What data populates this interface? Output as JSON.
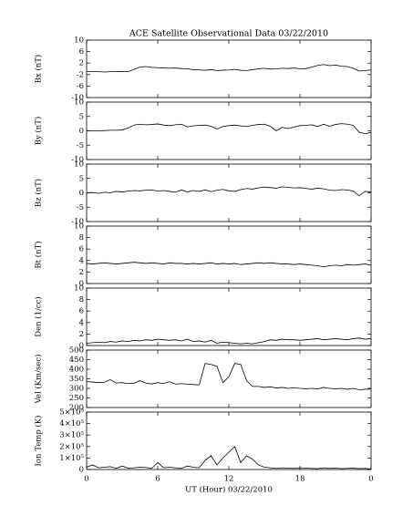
{
  "chart_data": [
    {
      "type": "line",
      "title": "ACE Satellite Observational Data   03/22/2010",
      "y_label": "Bx (nT)",
      "x": [
        0,
        0.5,
        1,
        1.5,
        2,
        2.5,
        3,
        3.5,
        4,
        4.5,
        5,
        5.5,
        6,
        6.5,
        7,
        7.5,
        8,
        8.5,
        9,
        9.5,
        10,
        10.5,
        11,
        11.5,
        12,
        12.5,
        13,
        13.5,
        14,
        14.5,
        15,
        15.5,
        16,
        16.5,
        17,
        17.5,
        18,
        18.5,
        19,
        19.5,
        20,
        20.5,
        21,
        21.5,
        22,
        22.5,
        23,
        23.5,
        24
      ],
      "series": [
        {
          "name": "Bx",
          "color": "#000000",
          "values": [
            -1,
            -1,
            -1,
            -1.1,
            -1,
            -1,
            -0.9,
            -1,
            -0.2,
            0.6,
            0.8,
            0.5,
            0.4,
            0.3,
            0.2,
            0.3,
            0.1,
            0,
            -0.3,
            -0.4,
            -0.5,
            -0.3,
            -0.6,
            -0.5,
            -0.4,
            -0.2,
            -0.5,
            -0.6,
            -0.3,
            0,
            0.2,
            -0.1,
            0,
            0.2,
            0.1,
            0.3,
            0,
            0.1,
            0.6,
            1.2,
            1.5,
            1.1,
            1.3,
            0.9,
            0.8,
            0.2,
            -0.8,
            -0.6,
            -0.4
          ]
        }
      ],
      "xlim": [
        0,
        24
      ],
      "ylim": [
        -10,
        10
      ],
      "yticks": [
        10,
        6,
        2,
        -2,
        -6,
        -10
      ]
    },
    {
      "type": "line",
      "y_label": "By (nT)",
      "x": [
        0,
        0.5,
        1,
        1.5,
        2,
        2.5,
        3,
        3.5,
        4,
        4.5,
        5,
        5.5,
        6,
        6.5,
        7,
        7.5,
        8,
        8.5,
        9,
        9.5,
        10,
        10.5,
        11,
        11.5,
        12,
        12.5,
        13,
        13.5,
        14,
        14.5,
        15,
        15.5,
        16,
        16.5,
        17,
        17.5,
        18,
        18.5,
        19,
        19.5,
        20,
        20.5,
        21,
        21.5,
        22,
        22.5,
        23,
        23.5,
        24
      ],
      "series": [
        {
          "name": "By",
          "color": "#000000",
          "values": [
            0,
            0,
            0,
            0.1,
            0.2,
            0.2,
            0.3,
            1,
            2,
            2.3,
            2.1,
            2.2,
            2.4,
            2,
            1.8,
            2.1,
            2.3,
            1.4,
            1.7,
            1.9,
            2,
            1.6,
            0.6,
            1.5,
            1.8,
            2,
            1.7,
            1.5,
            1.9,
            2.2,
            2.3,
            1.6,
            0,
            1.2,
            0.8,
            1.3,
            1.8,
            1.9,
            2.1,
            1.5,
            2.3,
            1.6,
            2.2,
            2.5,
            2.3,
            1.9,
            -0.5,
            -1,
            -0.6
          ]
        }
      ],
      "xlim": [
        0,
        24
      ],
      "ylim": [
        -10,
        10
      ],
      "yticks": [
        10,
        5,
        0,
        -5,
        -10
      ]
    },
    {
      "type": "line",
      "y_label": "Bz (nT)",
      "x": [
        0,
        0.5,
        1,
        1.5,
        2,
        2.5,
        3,
        3.5,
        4,
        4.5,
        5,
        5.5,
        6,
        6.5,
        7,
        7.5,
        8,
        8.5,
        9,
        9.5,
        10,
        10.5,
        11,
        11.5,
        12,
        12.5,
        13,
        13.5,
        14,
        14.5,
        15,
        15.5,
        16,
        16.5,
        17,
        17.5,
        18,
        18.5,
        19,
        19.5,
        20,
        20.5,
        21,
        21.5,
        22,
        22.5,
        23,
        23.5,
        24
      ],
      "series": [
        {
          "name": "Bz",
          "color": "#000000",
          "values": [
            0,
            0.1,
            -0.2,
            0.2,
            0,
            0.5,
            0.3,
            0.6,
            0.8,
            0.7,
            0.9,
            1,
            0.6,
            0.8,
            0.5,
            0.2,
            1,
            0.3,
            0.8,
            0.5,
            1,
            0.4,
            0.9,
            1.2,
            0.7,
            0.5,
            1.1,
            1.5,
            1.3,
            1.7,
            2,
            1.8,
            1.6,
            2.1,
            1.9,
            1.7,
            1.8,
            1.5,
            1.3,
            1.6,
            1.4,
            0.9,
            0.8,
            1.1,
            1,
            0.6,
            -1,
            0.5,
            0.3
          ]
        }
      ],
      "xlim": [
        0,
        24
      ],
      "ylim": [
        -10,
        10
      ],
      "yticks": [
        10,
        5,
        0,
        -5,
        -10
      ]
    },
    {
      "type": "line",
      "y_label": "Bt (nT)",
      "x": [
        0,
        0.5,
        1,
        1.5,
        2,
        2.5,
        3,
        3.5,
        4,
        4.5,
        5,
        5.5,
        6,
        6.5,
        7,
        7.5,
        8,
        8.5,
        9,
        9.5,
        10,
        10.5,
        11,
        11.5,
        12,
        12.5,
        13,
        13.5,
        14,
        14.5,
        15,
        15.5,
        16,
        16.5,
        17,
        17.5,
        18,
        18.5,
        19,
        19.5,
        20,
        20.5,
        21,
        21.5,
        22,
        22.5,
        23,
        23.5,
        24
      ],
      "series": [
        {
          "name": "Bt",
          "color": "#000000",
          "values": [
            3.5,
            3.4,
            3.5,
            3.6,
            3.5,
            3.4,
            3.5,
            3.6,
            3.7,
            3.6,
            3.5,
            3.6,
            3.5,
            3.4,
            3.6,
            3.5,
            3.5,
            3.4,
            3.5,
            3.4,
            3.5,
            3.6,
            3.4,
            3.5,
            3.4,
            3.5,
            3.3,
            3.4,
            3.5,
            3.6,
            3.5,
            3.6,
            3.5,
            3.4,
            3.4,
            3.3,
            3.4,
            3.3,
            3.2,
            3.1,
            2.9,
            3.1,
            3.2,
            3.1,
            3.3,
            3.2,
            3.3,
            3.4,
            3.2
          ]
        }
      ],
      "xlim": [
        0,
        24
      ],
      "ylim": [
        0,
        10
      ],
      "yticks": [
        10,
        8,
        6,
        4,
        2,
        0
      ]
    },
    {
      "type": "line",
      "y_label": "Den (1/cc)",
      "x": [
        0,
        0.5,
        1,
        1.5,
        2,
        2.5,
        3,
        3.5,
        4,
        4.5,
        5,
        5.5,
        6,
        6.5,
        7,
        7.5,
        8,
        8.5,
        9,
        9.5,
        10,
        10.5,
        11,
        11.5,
        12,
        12.5,
        13,
        13.5,
        14,
        14.5,
        15,
        15.5,
        16,
        16.5,
        17,
        17.5,
        18,
        18.5,
        19,
        19.5,
        20,
        20.5,
        21,
        21.5,
        22,
        22.5,
        23,
        23.5,
        24
      ],
      "series": [
        {
          "name": "Den",
          "color": "#000000",
          "values": [
            0.4,
            0.5,
            0.6,
            0.5,
            0.7,
            0.6,
            0.8,
            0.7,
            0.9,
            0.8,
            1,
            0.9,
            1.1,
            1,
            0.9,
            1,
            0.8,
            1.1,
            0.7,
            0.8,
            0.6,
            0.9,
            0.4,
            0.6,
            0.5,
            0.4,
            0.3,
            0.4,
            0.3,
            0.5,
            0.7,
            1,
            0.9,
            1.1,
            1,
            1,
            0.9,
            1,
            1.1,
            1.2,
            1,
            1.1,
            1.2,
            1.1,
            1,
            1.2,
            1.3,
            1.1,
            1.2
          ]
        }
      ],
      "xlim": [
        0,
        24
      ],
      "ylim": [
        0,
        10
      ],
      "yticks": [
        10,
        8,
        6,
        4,
        2,
        0
      ]
    },
    {
      "type": "line",
      "y_label": "Vel (Km/sec)",
      "x": [
        0,
        0.5,
        1,
        1.5,
        2,
        2.5,
        3,
        3.5,
        4,
        4.5,
        5,
        5.5,
        6,
        6.5,
        7,
        7.5,
        8,
        8.5,
        9,
        9.5,
        10,
        10.5,
        11,
        11.5,
        12,
        12.5,
        13,
        13.5,
        14,
        14.5,
        15,
        15.5,
        16,
        16.5,
        17,
        17.5,
        18,
        18.5,
        19,
        19.5,
        20,
        20.5,
        21,
        21.5,
        22,
        22.5,
        23,
        23.5,
        24
      ],
      "series": [
        {
          "name": "Vel",
          "color": "#000000",
          "values": [
            335,
            333,
            330,
            332,
            345,
            328,
            330,
            325,
            327,
            340,
            328,
            323,
            330,
            325,
            335,
            322,
            325,
            322,
            320,
            318,
            430,
            425,
            415,
            330,
            360,
            430,
            425,
            340,
            310,
            310,
            305,
            308,
            302,
            305,
            300,
            303,
            300,
            298,
            300,
            297,
            305,
            300,
            298,
            300,
            295,
            300,
            293,
            295,
            297
          ]
        }
      ],
      "xlim": [
        0,
        24
      ],
      "ylim": [
        200,
        500
      ],
      "yticks": [
        500,
        450,
        400,
        350,
        300,
        250,
        200
      ]
    },
    {
      "type": "line",
      "y_label": "Ion Temp (K)",
      "x_label": "UT (Hour)  03/22/2010",
      "x": [
        0,
        0.5,
        1,
        1.5,
        2,
        2.5,
        3,
        3.5,
        4,
        4.5,
        5,
        5.5,
        6,
        6.5,
        7,
        7.5,
        8,
        8.5,
        9,
        9.5,
        10,
        10.5,
        11,
        11.5,
        12,
        12.5,
        13,
        13.5,
        14,
        14.5,
        15,
        15.5,
        16,
        16.5,
        17,
        17.5,
        18,
        18.5,
        19,
        19.5,
        20,
        20.5,
        21,
        21.5,
        22,
        22.5,
        23,
        23.5,
        24
      ],
      "series": [
        {
          "name": "Ion Temp",
          "color": "#000000",
          "values": [
            20000,
            40000,
            15000,
            20000,
            25000,
            10000,
            30000,
            12000,
            15000,
            20000,
            18000,
            10000,
            60000,
            15000,
            20000,
            15000,
            10000,
            30000,
            20000,
            15000,
            80000,
            120000,
            40000,
            100000,
            150000,
            200000,
            60000,
            120000,
            90000,
            40000,
            20000,
            15000,
            10000,
            15000,
            12000,
            10000,
            15000,
            12000,
            10000,
            8000,
            15000,
            10000,
            12000,
            8000,
            10000,
            12000,
            8000,
            10000,
            5000
          ]
        }
      ],
      "xlim": [
        0,
        24
      ],
      "ylim": [
        0,
        500000
      ],
      "yticks": [
        {
          "value": 500000,
          "label": "5×10⁵"
        },
        {
          "value": 400000,
          "label": "4×10⁵"
        },
        {
          "value": 300000,
          "label": "3×10⁵"
        },
        {
          "value": 200000,
          "label": "2×10⁵"
        },
        {
          "value": 100000,
          "label": "1×10⁵"
        },
        0
      ],
      "xticks": [
        0,
        6,
        12,
        18,
        {
          "value": 24,
          "label": "0"
        }
      ]
    }
  ]
}
